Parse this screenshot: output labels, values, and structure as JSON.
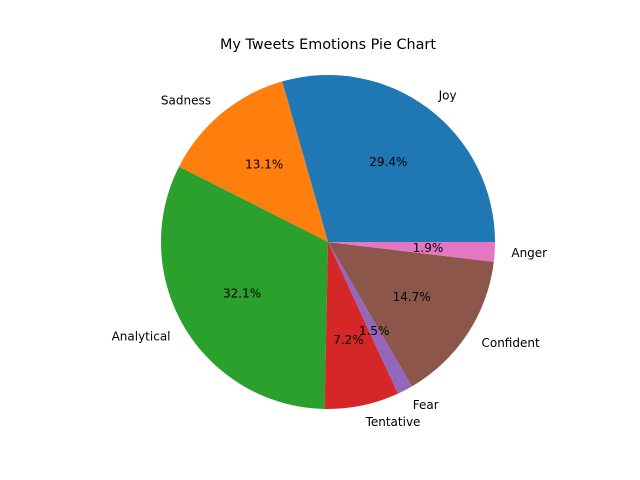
{
  "chart_data": {
    "type": "pie",
    "title": "My Tweets Emotions Pie Chart",
    "start_angle": 0,
    "direction": "counterclockwise",
    "slices": [
      {
        "label": "Joy",
        "value": 29.4,
        "percent_label": "29.4%",
        "color": "#1f77b4"
      },
      {
        "label": "Sadness",
        "value": 13.1,
        "percent_label": "13.1%",
        "color": "#ff7f0e"
      },
      {
        "label": "Analytical",
        "value": 32.1,
        "percent_label": "32.1%",
        "color": "#2ca02c"
      },
      {
        "label": "Tentative",
        "value": 7.2,
        "percent_label": "7.2%",
        "color": "#d62728"
      },
      {
        "label": "Fear",
        "value": 1.5,
        "percent_label": "1.5%",
        "color": "#9467bd"
      },
      {
        "label": "Confident",
        "value": 14.7,
        "percent_label": "14.7%",
        "color": "#8c564b"
      },
      {
        "label": "Anger",
        "value": 1.9,
        "percent_label": "1.9%",
        "color": "#e377c2"
      }
    ]
  }
}
